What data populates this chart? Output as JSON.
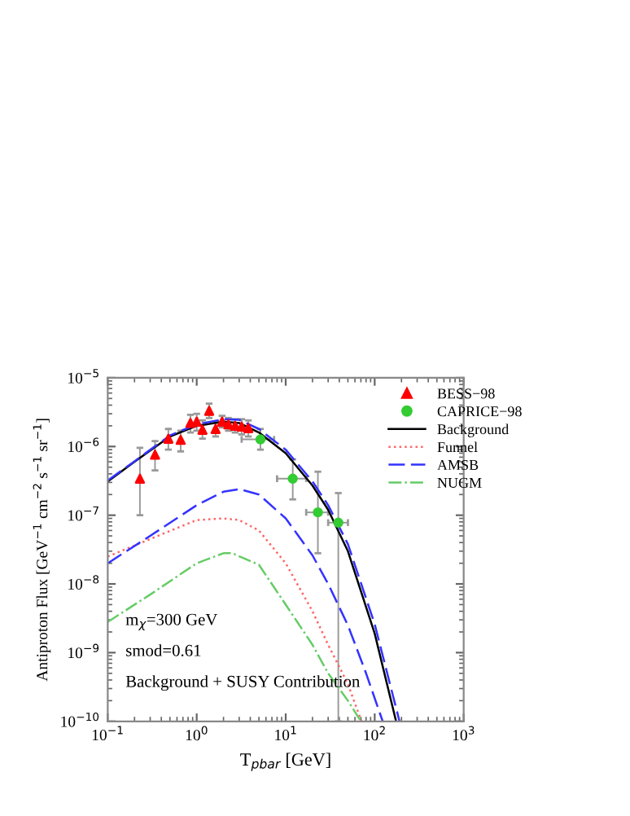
{
  "chart_data": {
    "type": "line",
    "xlabel": "T$_{pbar}$ [GeV]",
    "ylabel": "Antiproton Flux [GeV$^{−1}$ cm$^{−2}$ s$^{−1}$ sr$^{−1}$]",
    "log": "xy",
    "xlim": [
      0.1,
      1000
    ],
    "ylim": [
      1e-10,
      1e-05
    ],
    "xticks": [
      {
        "value": 0.1,
        "label": "10$^{−1}$"
      },
      {
        "value": 1,
        "label": "10$^{0}$"
      },
      {
        "value": 10,
        "label": "10$^{1}$"
      },
      {
        "value": 100,
        "label": "10$^{2}$"
      },
      {
        "value": 1000,
        "label": "10$^{3}$"
      }
    ],
    "yticks": [
      {
        "value": 1e-10,
        "label": "10$^{−10}$"
      },
      {
        "value": 1e-09,
        "label": "10$^{−9}$"
      },
      {
        "value": 1e-08,
        "label": "10$^{−8}$"
      },
      {
        "value": 1e-07,
        "label": "10$^{−7}$"
      },
      {
        "value": 1e-06,
        "label": "10$^{−6}$"
      },
      {
        "value": 1e-05,
        "label": "10$^{−5}$"
      }
    ],
    "grid": false,
    "legend": "top right",
    "series": [
      {
        "name": "BESS−98",
        "type": "scatter",
        "marker": "triangle",
        "color": "#ff0000",
        "x": [
          0.23,
          0.34,
          0.48,
          0.66,
          0.85,
          1.0,
          1.16,
          1.38,
          1.63,
          1.93,
          2.27,
          2.7,
          3.2,
          3.8
        ],
        "values": [
          3.4e-07,
          7.6e-07,
          1.3e-06,
          1.25e-06,
          2.2e-06,
          2.3e-06,
          1.75e-06,
          3.3e-06,
          1.8e-06,
          2.3e-06,
          2.1e-06,
          2e-06,
          1.95e-06,
          1.85e-06
        ],
        "errors": [
          [
            1e-07,
            9.6e-07
          ],
          [
            4.5e-07,
            1.2e-06
          ],
          [
            9e-07,
            1.8e-06
          ],
          [
            8.5e-07,
            1.7e-06
          ],
          [
            1.6e-06,
            2.9e-06
          ],
          [
            1.7e-06,
            3e-06
          ],
          [
            1.3e-06,
            2.4e-06
          ],
          [
            2.6e-06,
            4.2e-06
          ],
          [
            1.4e-06,
            2.3e-06
          ],
          [
            1.9e-06,
            2.8e-06
          ],
          [
            1.7e-06,
            2.6e-06
          ],
          [
            1.6e-06,
            2.5e-06
          ],
          [
            1.5e-06,
            2.5e-06
          ],
          [
            1.4e-06,
            2.4e-06
          ]
        ]
      },
      {
        "name": "CAPRICE−98",
        "type": "scatter",
        "marker": "circle",
        "color": "#33cc33",
        "x": [
          5.2,
          12,
          23,
          39
        ],
        "values": [
          1.27e-06,
          3.4e-07,
          1.1e-07,
          7.8e-08
        ],
        "errors": [
          [
            9e-07,
            1.8e-06
          ],
          [
            1.7e-07,
            6.5e-07
          ],
          [
            2.8e-08,
            4.3e-07
          ],
          [
            1e-10,
            2.1e-07
          ]
        ],
        "xerrors": [
          [
            3.2,
            7.4
          ],
          [
            8,
            17
          ],
          [
            17,
            30
          ],
          [
            30,
            50
          ]
        ]
      },
      {
        "name": "Background",
        "color": "#000000",
        "line_style": "solid",
        "x": [
          0.1,
          0.2,
          0.5,
          1,
          2,
          3,
          5,
          10,
          20,
          30,
          50,
          100,
          174
        ],
        "values": [
          3.1e-07,
          6e-07,
          1.4e-06,
          2e-06,
          2.3e-06,
          2.2e-06,
          1.6e-06,
          8e-07,
          2.7e-07,
          1.2e-07,
          3e-08,
          1.9e-09,
          1e-10
        ]
      },
      {
        "name": "Funnel",
        "color": "#ff6666",
        "line_style": "dotted",
        "x": [
          0.1,
          0.3,
          1,
          2,
          3,
          5,
          10,
          20,
          30,
          50,
          71
        ],
        "values": [
          2.5e-08,
          4.5e-08,
          8.5e-08,
          9e-08,
          8.5e-08,
          6e-08,
          2e-08,
          4e-09,
          1.3e-09,
          3.5e-10,
          1e-10
        ]
      },
      {
        "name": "AMSB",
        "color": "#3333ff",
        "line_style": "dashed",
        "x": [
          0.1,
          0.3,
          1,
          2,
          3,
          5,
          10,
          20,
          30,
          50,
          80,
          123
        ],
        "values": [
          2e-08,
          5e-08,
          1.4e-07,
          2.2e-07,
          2.4e-07,
          2e-07,
          9e-08,
          2.6e-08,
          1e-08,
          2.5e-09,
          5e-10,
          1e-10
        ]
      },
      {
        "name": "NUGM",
        "color": "#66cc66",
        "line_style": "dashdot",
        "x": [
          0.1,
          0.3,
          1,
          2,
          2.5,
          5,
          10,
          20,
          30,
          50,
          70
        ],
        "values": [
          2.8e-09,
          7e-09,
          2e-08,
          2.8e-08,
          2.8e-08,
          1.9e-08,
          5e-09,
          1.3e-09,
          5e-10,
          2e-10,
          1e-10
        ]
      },
      {
        "color": "#3333ff",
        "line_style": "dashed",
        "x": [
          0.1,
          0.2,
          0.5,
          1,
          2,
          3,
          5,
          10,
          20,
          30,
          50,
          100,
          190
        ],
        "values": [
          3.2e-07,
          6.1e-07,
          1.45e-06,
          2.1e-06,
          2.5e-06,
          2.45e-06,
          1.8e-06,
          9e-07,
          3.1e-07,
          1.4e-07,
          3.8e-08,
          2.6e-09,
          1e-10
        ]
      }
    ],
    "annotations": [
      "m$_{χ}$=300 GeV",
      "smod=0.61",
      "Background + SUSY Contribution"
    ]
  }
}
